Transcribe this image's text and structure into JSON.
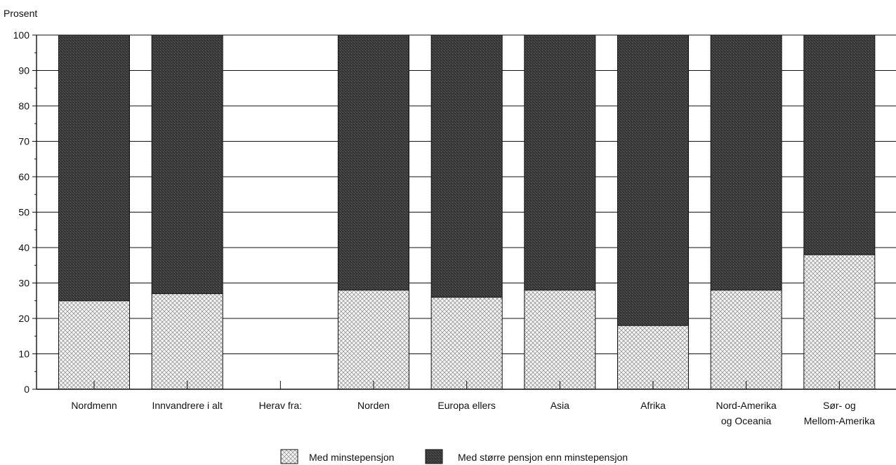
{
  "chart_data": {
    "type": "bar",
    "stacked": true,
    "ylabel": "Prosent",
    "ylim": [
      0,
      100
    ],
    "yticks": [
      0,
      10,
      20,
      30,
      40,
      50,
      60,
      70,
      80,
      90,
      100
    ],
    "grid": true,
    "legend_position": "bottom-center",
    "categories": [
      [
        "Nordmenn"
      ],
      [
        "Innvandrere i alt"
      ],
      [
        "Herav fra:"
      ],
      [
        "Norden"
      ],
      [
        "Europa ellers"
      ],
      [
        "Asia"
      ],
      [
        "Afrika"
      ],
      [
        "Nord-Amerika",
        "og Oceania"
      ],
      [
        "Sør- og",
        "Mellom-Amerika"
      ]
    ],
    "series": [
      {
        "name": "Med minstepensjon",
        "values": [
          25,
          27,
          null,
          28,
          26,
          28,
          18,
          28,
          38
        ]
      },
      {
        "name": "Med større pensjon enn minstepensjon",
        "values": [
          75,
          73,
          null,
          72,
          74,
          72,
          82,
          72,
          62
        ]
      }
    ],
    "colors": {
      "light_fill": "#f2f2f2",
      "dark_fill": "#3a3a3a",
      "line": "#111111"
    }
  }
}
